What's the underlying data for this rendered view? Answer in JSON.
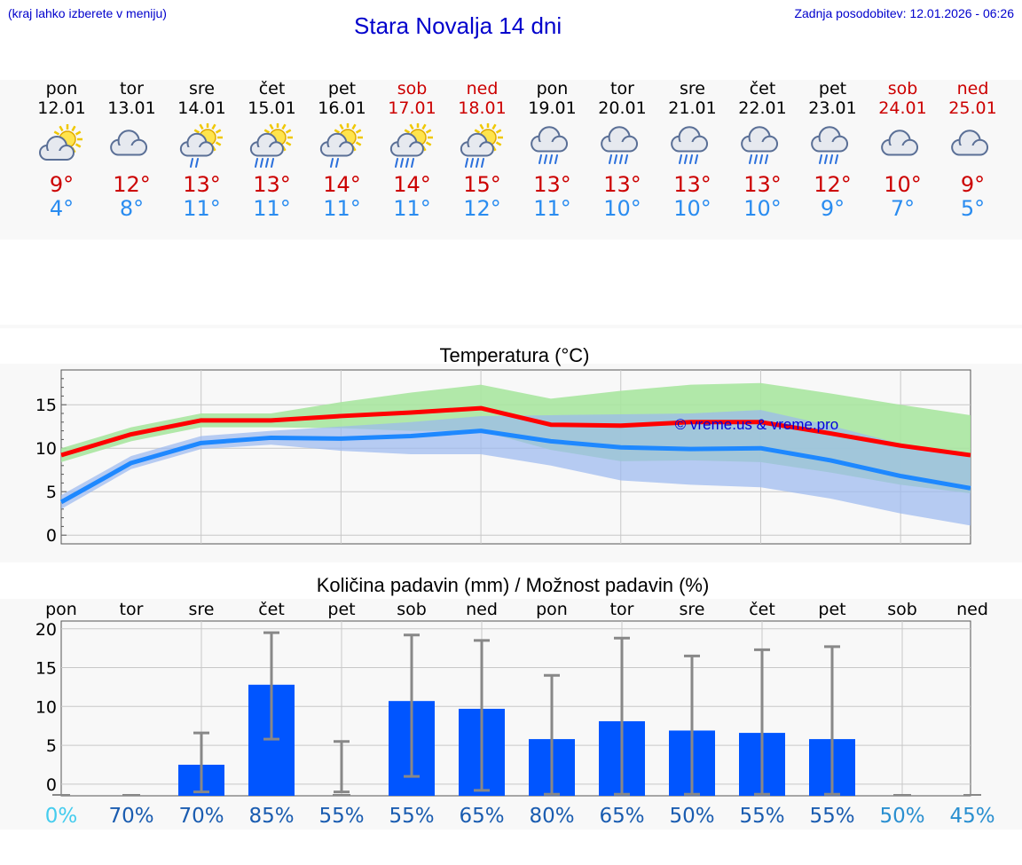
{
  "header": {
    "left_note": "(kraj lahko izberete v meniju)",
    "title": "Stara Novalja 14 dni",
    "updated": "Zadnja posodobitev: 12.01.2026 - 06:26"
  },
  "colors": {
    "max": "#ff0000",
    "min": "#1e88ff",
    "bar": "#0055ff",
    "band_max": "#a8e6a0",
    "band_min": "#9ab8f0"
  },
  "days": [
    {
      "name": "pon",
      "date": "12.01",
      "weekend": false,
      "icon": "partly-sunny-icon",
      "max": "9°",
      "min": "4°"
    },
    {
      "name": "tor",
      "date": "13.01",
      "weekend": false,
      "icon": "cloudy-icon",
      "max": "12°",
      "min": "8°"
    },
    {
      "name": "sre",
      "date": "14.01",
      "weekend": false,
      "icon": "sun-light-rain-icon",
      "max": "13°",
      "min": "11°"
    },
    {
      "name": "čet",
      "date": "15.01",
      "weekend": false,
      "icon": "sun-rain-icon",
      "max": "13°",
      "min": "11°"
    },
    {
      "name": "pet",
      "date": "16.01",
      "weekend": false,
      "icon": "sun-light-rain-icon",
      "max": "14°",
      "min": "11°"
    },
    {
      "name": "sob",
      "date": "17.01",
      "weekend": true,
      "icon": "sun-rain-icon",
      "max": "14°",
      "min": "11°"
    },
    {
      "name": "ned",
      "date": "18.01",
      "weekend": true,
      "icon": "sun-rain-icon",
      "max": "15°",
      "min": "12°"
    },
    {
      "name": "pon",
      "date": "19.01",
      "weekend": false,
      "icon": "cloud-rain-icon",
      "max": "13°",
      "min": "11°"
    },
    {
      "name": "tor",
      "date": "20.01",
      "weekend": false,
      "icon": "cloud-rain-icon",
      "max": "13°",
      "min": "10°"
    },
    {
      "name": "sre",
      "date": "21.01",
      "weekend": false,
      "icon": "cloud-rain-icon",
      "max": "13°",
      "min": "10°"
    },
    {
      "name": "čet",
      "date": "22.01",
      "weekend": false,
      "icon": "cloud-rain-icon",
      "max": "13°",
      "min": "10°"
    },
    {
      "name": "pet",
      "date": "23.01",
      "weekend": false,
      "icon": "cloud-rain-icon",
      "max": "12°",
      "min": "9°"
    },
    {
      "name": "sob",
      "date": "24.01",
      "weekend": true,
      "icon": "cloudy-icon",
      "max": "10°",
      "min": "7°"
    },
    {
      "name": "ned",
      "date": "25.01",
      "weekend": true,
      "icon": "cloudy-icon",
      "max": "9°",
      "min": "5°"
    }
  ],
  "chart_data": [
    {
      "type": "line",
      "title": "Temperatura (°C)",
      "watermark": "© vreme.us & vreme.pro",
      "x_count": 14,
      "ylim": [
        -1,
        19
      ],
      "yticks": [
        0,
        5,
        10,
        15
      ],
      "series": [
        {
          "name": "max",
          "values": [
            9.2,
            11.6,
            13.2,
            13.2,
            13.7,
            14.1,
            14.6,
            12.7,
            12.6,
            13.0,
            13.0,
            11.7,
            10.3,
            9.2
          ]
        },
        {
          "name": "min",
          "values": [
            3.8,
            8.3,
            10.6,
            11.2,
            11.1,
            11.4,
            12.0,
            10.8,
            10.1,
            9.9,
            10.0,
            8.6,
            6.8,
            5.4
          ]
        }
      ],
      "bands": [
        {
          "name": "max-range",
          "upper": [
            10.0,
            12.4,
            14.0,
            14.0,
            15.3,
            16.4,
            17.3,
            15.7,
            16.6,
            17.3,
            17.5,
            16.3,
            15.0,
            13.8
          ],
          "lower": [
            8.4,
            10.8,
            12.4,
            12.4,
            12.3,
            12.0,
            12.0,
            9.8,
            8.5,
            8.6,
            8.4,
            7.2,
            5.8,
            4.8
          ]
        },
        {
          "name": "min-range",
          "upper": [
            4.6,
            9.1,
            11.4,
            12.0,
            12.5,
            13.0,
            13.7,
            13.8,
            13.9,
            14.0,
            14.4,
            12.6,
            10.5,
            8.9
          ]
        },
        {
          "name": "min-range-lower",
          "lower": [
            3.0,
            7.6,
            9.9,
            10.4,
            9.7,
            9.3,
            9.3,
            8.0,
            6.3,
            5.8,
            5.5,
            4.2,
            2.5,
            1.1
          ]
        }
      ]
    },
    {
      "type": "bar",
      "title": "Količina padavin (mm) / Možnost padavin (%)",
      "categories": [
        "pon",
        "tor",
        "sre",
        "čet",
        "pet",
        "sob",
        "ned",
        "pon",
        "tor",
        "sre",
        "čet",
        "pet",
        "sob",
        "ned"
      ],
      "ylim": [
        -1.5,
        21
      ],
      "yticks": [
        0,
        5,
        10,
        15,
        20
      ],
      "values": [
        0,
        0,
        2.5,
        12.8,
        0,
        10.7,
        9.7,
        5.8,
        8.1,
        6.9,
        6.6,
        5.8,
        0,
        0
      ],
      "err_low": [
        0,
        0,
        -1,
        5.8,
        -1,
        1,
        -0.8,
        -1.3,
        -1.3,
        -1.3,
        -1.3,
        -1.3,
        0,
        0
      ],
      "err_high": [
        0,
        0,
        6.6,
        19.5,
        5.5,
        19.2,
        18.5,
        14.0,
        18.8,
        16.5,
        17.3,
        17.7,
        0,
        0
      ],
      "chance": [
        "0%",
        "70%",
        "70%",
        "85%",
        "55%",
        "55%",
        "65%",
        "80%",
        "65%",
        "50%",
        "55%",
        "55%",
        "50%",
        "45%"
      ],
      "chance_colors": [
        "#44ccee",
        "#1a5cb0",
        "#1a5cb0",
        "#1a5cb0",
        "#1a5cb0",
        "#1a5cb0",
        "#1a5cb0",
        "#1a5cb0",
        "#1a5cb0",
        "#1a5cb0",
        "#1a5cb0",
        "#1a5cb0",
        "#2a8fd0",
        "#2a8fd0"
      ]
    }
  ]
}
